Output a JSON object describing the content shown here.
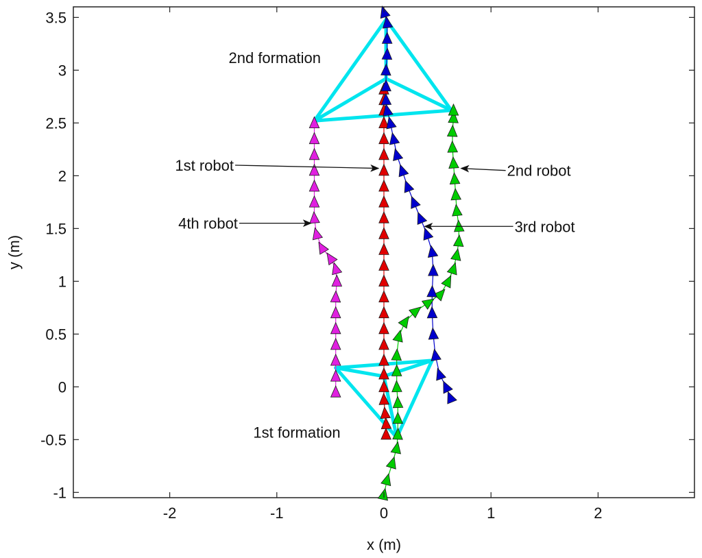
{
  "chart_data": {
    "type": "scatter",
    "xlabel": "x (m)",
    "ylabel": "y (m)",
    "xlim": [
      -2.9,
      2.9
    ],
    "ylim": [
      -1.05,
      3.6
    ],
    "xticks": [
      -2,
      -1,
      0,
      1,
      2
    ],
    "yticks": [
      -1,
      -0.5,
      0,
      0.5,
      1,
      1.5,
      2,
      2.5,
      3,
      3.5
    ],
    "grid": false,
    "marker": "triangle",
    "series": [
      {
        "name": "1st robot",
        "color": "#e00000",
        "points": [
          [
            0.02,
            -0.45
          ],
          [
            0.02,
            -0.35
          ],
          [
            0.01,
            -0.25
          ],
          [
            0.0,
            -0.12
          ],
          [
            0.0,
            0.0
          ],
          [
            0.0,
            0.12
          ],
          [
            0.0,
            0.25
          ],
          [
            0.0,
            0.4
          ],
          [
            0.0,
            0.55
          ],
          [
            0.0,
            0.7
          ],
          [
            0.0,
            0.85
          ],
          [
            0.0,
            1.0
          ],
          [
            0.0,
            1.15
          ],
          [
            0.0,
            1.3
          ],
          [
            0.0,
            1.45
          ],
          [
            0.0,
            1.6
          ],
          [
            0.0,
            1.75
          ],
          [
            0.0,
            1.9
          ],
          [
            0.0,
            2.05
          ],
          [
            0.0,
            2.2
          ],
          [
            0.0,
            2.35
          ],
          [
            0.0,
            2.5
          ],
          [
            0.0,
            2.62
          ],
          [
            0.0,
            2.72
          ],
          [
            0.0,
            2.82
          ]
        ]
      },
      {
        "name": "2nd robot",
        "color": "#00cc00",
        "points": [
          [
            0.0,
            -1.02
          ],
          [
            0.03,
            -0.88
          ],
          [
            0.08,
            -0.72
          ],
          [
            0.12,
            -0.58
          ],
          [
            0.13,
            -0.45
          ],
          [
            0.13,
            -0.3
          ],
          [
            0.13,
            -0.15
          ],
          [
            0.12,
            0.0
          ],
          [
            0.12,
            0.15
          ],
          [
            0.12,
            0.3
          ],
          [
            0.14,
            0.48
          ],
          [
            0.2,
            0.62
          ],
          [
            0.3,
            0.72
          ],
          [
            0.42,
            0.8
          ],
          [
            0.53,
            0.88
          ],
          [
            0.6,
            1.0
          ],
          [
            0.65,
            1.12
          ],
          [
            0.68,
            1.25
          ],
          [
            0.7,
            1.38
          ],
          [
            0.7,
            1.52
          ],
          [
            0.68,
            1.67
          ],
          [
            0.67,
            1.82
          ],
          [
            0.66,
            1.97
          ],
          [
            0.65,
            2.12
          ],
          [
            0.64,
            2.27
          ],
          [
            0.64,
            2.42
          ],
          [
            0.65,
            2.55
          ],
          [
            0.65,
            2.62
          ]
        ]
      },
      {
        "name": "3rd robot",
        "color": "#0000cc",
        "points": [
          [
            0.62,
            -0.1
          ],
          [
            0.58,
            0.0
          ],
          [
            0.52,
            0.12
          ],
          [
            0.48,
            0.3
          ],
          [
            0.46,
            0.5
          ],
          [
            0.45,
            0.7
          ],
          [
            0.45,
            0.9
          ],
          [
            0.46,
            1.1
          ],
          [
            0.45,
            1.28
          ],
          [
            0.4,
            1.45
          ],
          [
            0.34,
            1.6
          ],
          [
            0.28,
            1.75
          ],
          [
            0.22,
            1.9
          ],
          [
            0.17,
            2.05
          ],
          [
            0.12,
            2.2
          ],
          [
            0.09,
            2.35
          ],
          [
            0.06,
            2.5
          ],
          [
            0.03,
            2.62
          ],
          [
            0.02,
            2.72
          ],
          [
            0.02,
            2.85
          ],
          [
            0.02,
            3.0
          ],
          [
            0.03,
            3.15
          ],
          [
            0.03,
            3.3
          ],
          [
            0.03,
            3.45
          ],
          [
            0.0,
            3.55
          ]
        ]
      },
      {
        "name": "4th robot",
        "color": "#e020e0",
        "points": [
          [
            -0.45,
            -0.05
          ],
          [
            -0.45,
            0.1
          ],
          [
            -0.45,
            0.25
          ],
          [
            -0.45,
            0.4
          ],
          [
            -0.45,
            0.55
          ],
          [
            -0.45,
            0.7
          ],
          [
            -0.45,
            0.85
          ],
          [
            -0.44,
            1.0
          ],
          [
            -0.45,
            1.12
          ],
          [
            -0.5,
            1.22
          ],
          [
            -0.58,
            1.32
          ],
          [
            -0.63,
            1.45
          ],
          [
            -0.65,
            1.6
          ],
          [
            -0.65,
            1.75
          ],
          [
            -0.65,
            1.9
          ],
          [
            -0.65,
            2.05
          ],
          [
            -0.65,
            2.2
          ],
          [
            -0.65,
            2.35
          ],
          [
            -0.65,
            2.5
          ]
        ]
      }
    ],
    "formations": [
      {
        "name": "1st formation",
        "color": "#00e5ee",
        "vertices": [
          [
            0.0,
            0.1
          ],
          [
            0.45,
            0.25
          ],
          [
            0.12,
            -0.48
          ],
          [
            -0.45,
            0.18
          ]
        ]
      },
      {
        "name": "2nd formation",
        "color": "#00e5ee",
        "vertices": [
          [
            0.02,
            2.92
          ],
          [
            0.63,
            2.62
          ],
          [
            0.02,
            3.48
          ],
          [
            -0.65,
            2.52
          ]
        ]
      }
    ],
    "annotations": [
      {
        "text": "2nd formation",
        "text_xy": [
          -1.45,
          3.12
        ],
        "target": null
      },
      {
        "text": "1st robot",
        "text_xy": [
          -1.95,
          2.1
        ],
        "target": [
          -0.05,
          2.07
        ]
      },
      {
        "text": "2nd robot",
        "text_xy": [
          1.15,
          2.05
        ],
        "target": [
          0.72,
          2.07
        ]
      },
      {
        "text": "4th robot",
        "text_xy": [
          -1.92,
          1.55
        ],
        "target": [
          -0.68,
          1.55
        ]
      },
      {
        "text": "3rd robot",
        "text_xy": [
          1.22,
          1.52
        ],
        "target": [
          0.38,
          1.52
        ]
      },
      {
        "text": "1st formation",
        "text_xy": [
          -1.22,
          -0.43
        ],
        "target": null
      }
    ]
  }
}
